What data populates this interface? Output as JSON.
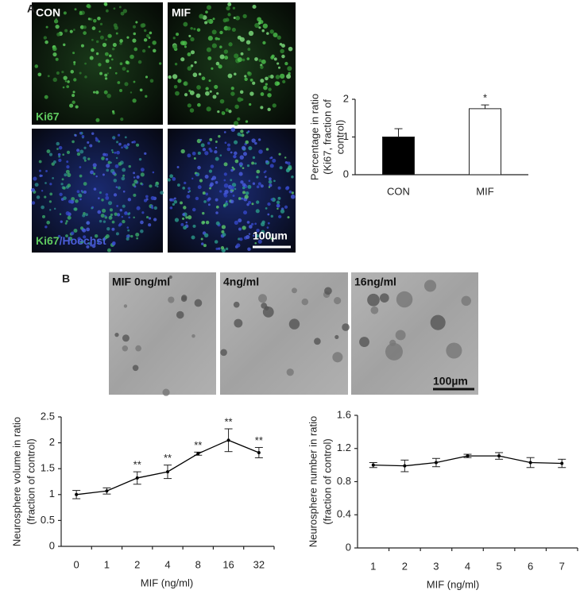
{
  "panels": {
    "a": {
      "label": "A",
      "con": "CON",
      "mif": "MIF",
      "ki67": "Ki67",
      "merge": [
        "Ki67",
        "/Hoechst"
      ],
      "scale": "100µm"
    },
    "b": {
      "label": "B",
      "images": [
        "MIF 0ng/ml",
        "4ng/ml",
        "16ng/ml"
      ],
      "scale": "100µm"
    }
  },
  "chart_data": [
    {
      "type": "bar",
      "categories": [
        "CON",
        "MIF"
      ],
      "values": [
        1.0,
        1.75
      ],
      "errors": [
        0.22,
        0.1
      ],
      "colors": [
        "#000000",
        "#ffffff"
      ],
      "annotations": [
        null,
        "*"
      ],
      "ylabel": [
        "Percentage in ratio",
        "(Ki67, fraction of",
        "control)"
      ],
      "ylim": [
        0,
        2
      ],
      "yticks": [
        0,
        1,
        2
      ]
    },
    {
      "type": "line",
      "categories": [
        "0",
        "1",
        "2",
        "4",
        "8",
        "16",
        "32"
      ],
      "values": [
        1.0,
        1.07,
        1.32,
        1.44,
        1.79,
        2.05,
        1.81
      ],
      "errors": [
        0.08,
        0.06,
        0.12,
        0.13,
        0.03,
        0.22,
        0.1
      ],
      "annotations": [
        null,
        null,
        "**",
        "**",
        "**",
        "**",
        "**"
      ],
      "color": "#000000",
      "xlabel": "MIF (ng/ml)",
      "ylabel": [
        "Neurosphere volume in ratio",
        "(fraction of control)"
      ],
      "ylim": [
        0,
        2.5
      ],
      "yticks": [
        0,
        0.5,
        1,
        1.5,
        2,
        2.5
      ]
    },
    {
      "type": "line",
      "categories": [
        "1",
        "2",
        "3",
        "4",
        "5",
        "6",
        "7"
      ],
      "values": [
        1.0,
        0.99,
        1.03,
        1.11,
        1.11,
        1.03,
        1.02
      ],
      "errors": [
        0.03,
        0.07,
        0.05,
        0.02,
        0.04,
        0.06,
        0.05
      ],
      "color": "#000000",
      "xlabel": "MIF (ng/ml)",
      "ylabel": [
        "Neurosphere number in ratio",
        "(fraction of control)"
      ],
      "ylim": [
        0,
        1.6
      ],
      "yticks": [
        0,
        0.4,
        0.8,
        1.2,
        1.6
      ]
    }
  ]
}
